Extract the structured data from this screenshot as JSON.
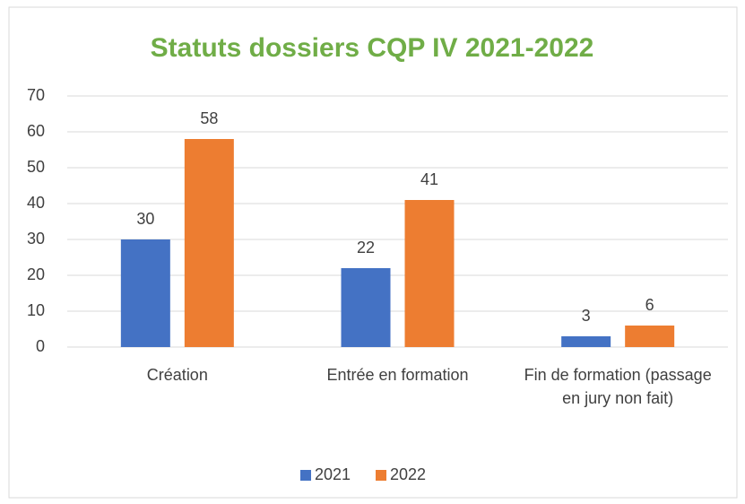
{
  "chart_data": {
    "type": "bar",
    "title": "Statuts dossiers CQP IV 2021-2022",
    "categories": [
      "Création",
      "Entrée en formation",
      "Fin de formation (passage en jury non fait)"
    ],
    "series": [
      {
        "name": "2021",
        "color": "#4472c4",
        "values": [
          30,
          22,
          3
        ]
      },
      {
        "name": "2022",
        "color": "#ed7d31",
        "values": [
          58,
          41,
          6
        ]
      }
    ],
    "ylim": [
      0,
      70
    ],
    "yticks": [
      0,
      10,
      20,
      30,
      40,
      50,
      60,
      70
    ],
    "grid": true,
    "legend": "bottom"
  }
}
